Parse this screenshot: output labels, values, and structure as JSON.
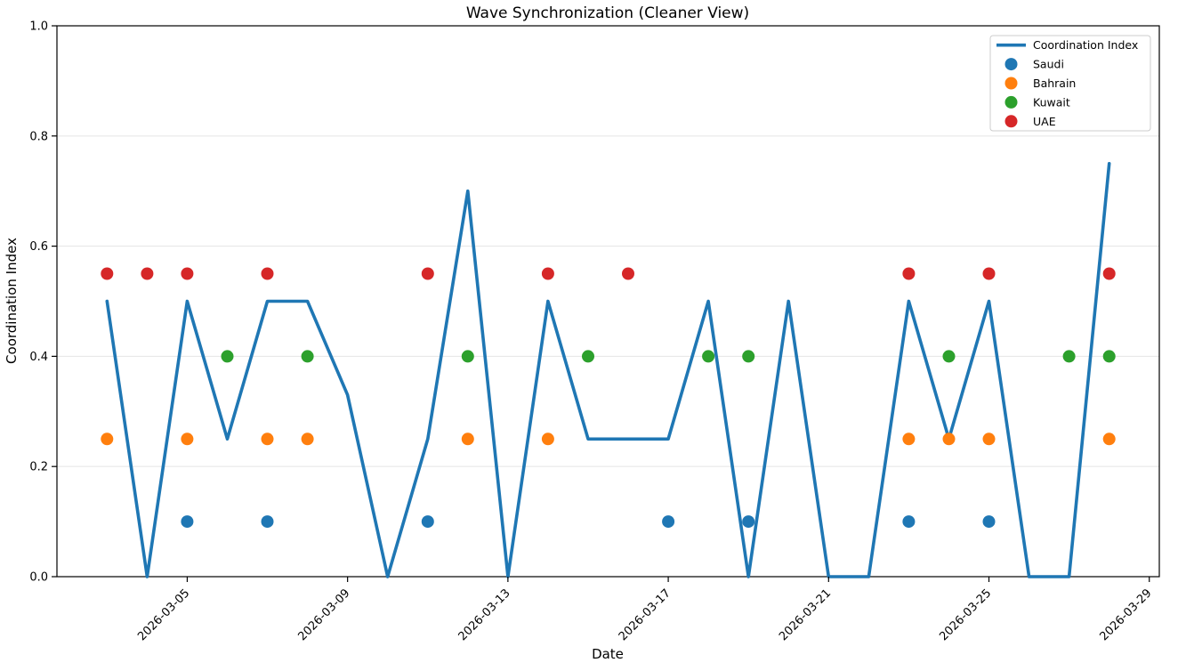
{
  "chart_data": {
    "type": "line+scatter",
    "title": "Wave Synchronization (Cleaner View)",
    "xlabel": "Date",
    "ylabel": "Coordination Index",
    "xlim_days": [
      1.75,
      29.25
    ],
    "ylim": [
      0.0,
      1.0
    ],
    "grid": "horizontal-only",
    "x_ticks": [
      {
        "day": 5,
        "label": "2026-03-05"
      },
      {
        "day": 9,
        "label": "2026-03-09"
      },
      {
        "day": 13,
        "label": "2026-03-13"
      },
      {
        "day": 17,
        "label": "2026-03-17"
      },
      {
        "day": 21,
        "label": "2026-03-21"
      },
      {
        "day": 25,
        "label": "2026-03-25"
      },
      {
        "day": 29,
        "label": "2026-03-29"
      }
    ],
    "y_ticks": [
      {
        "value": 0.0,
        "label": "0.0"
      },
      {
        "value": 0.2,
        "label": "0.2"
      },
      {
        "value": 0.4,
        "label": "0.4"
      },
      {
        "value": 0.6,
        "label": "0.6"
      },
      {
        "value": 0.8,
        "label": "0.8"
      },
      {
        "value": 1.0,
        "label": "1.0"
      }
    ],
    "line_series": {
      "name": "Coordination Index",
      "color": "#1f77b4",
      "dates": [
        "2026-03-03",
        "2026-03-04",
        "2026-03-05",
        "2026-03-06",
        "2026-03-07",
        "2026-03-08",
        "2026-03-09",
        "2026-03-10",
        "2026-03-11",
        "2026-03-12",
        "2026-03-13",
        "2026-03-14",
        "2026-03-15",
        "2026-03-16",
        "2026-03-17",
        "2026-03-18",
        "2026-03-19",
        "2026-03-20",
        "2026-03-21",
        "2026-03-22",
        "2026-03-23",
        "2026-03-24",
        "2026-03-25",
        "2026-03-26",
        "2026-03-27",
        "2026-03-28"
      ],
      "values": [
        0.5,
        0.0,
        0.5,
        0.25,
        0.5,
        0.5,
        0.33,
        0.0,
        0.25,
        0.7,
        0.0,
        0.5,
        0.25,
        0.25,
        0.25,
        0.5,
        0.0,
        0.5,
        0.0,
        0.0,
        0.5,
        0.25,
        0.5,
        0.0,
        0.0,
        0.75
      ]
    },
    "scatter_series": [
      {
        "name": "Saudi",
        "color": "#1f77b4",
        "y": 0.1,
        "dates": [
          "2026-03-05",
          "2026-03-07",
          "2026-03-11",
          "2026-03-17",
          "2026-03-19",
          "2026-03-23",
          "2026-03-25"
        ]
      },
      {
        "name": "Bahrain",
        "color": "#ff7f0e",
        "y": 0.25,
        "dates": [
          "2026-03-03",
          "2026-03-05",
          "2026-03-07",
          "2026-03-08",
          "2026-03-12",
          "2026-03-14",
          "2026-03-23",
          "2026-03-24",
          "2026-03-25",
          "2026-03-28"
        ]
      },
      {
        "name": "Kuwait",
        "color": "#2ca02c",
        "y": 0.4,
        "dates": [
          "2026-03-06",
          "2026-03-08",
          "2026-03-12",
          "2026-03-15",
          "2026-03-18",
          "2026-03-19",
          "2026-03-24",
          "2026-03-27",
          "2026-03-28"
        ]
      },
      {
        "name": "UAE",
        "color": "#d62728",
        "y": 0.55,
        "dates": [
          "2026-03-03",
          "2026-03-04",
          "2026-03-05",
          "2026-03-07",
          "2026-03-11",
          "2026-03-14",
          "2026-03-16",
          "2026-03-23",
          "2026-03-25",
          "2026-03-28"
        ]
      }
    ],
    "legend": {
      "position": "upper right",
      "entries": [
        {
          "label": "Coordination Index",
          "marker": "line",
          "color": "#1f77b4"
        },
        {
          "label": "Saudi",
          "marker": "dot",
          "color": "#1f77b4"
        },
        {
          "label": "Bahrain",
          "marker": "dot",
          "color": "#ff7f0e"
        },
        {
          "label": "Kuwait",
          "marker": "dot",
          "color": "#2ca02c"
        },
        {
          "label": "UAE",
          "marker": "dot",
          "color": "#d62728"
        }
      ]
    },
    "style": {
      "grid_color": "#e8e8e8",
      "spine_color": "#000000",
      "legend_border_color": "#cccccc",
      "background": "#ffffff",
      "line_width": 3.6,
      "dot_radius": 7
    }
  }
}
